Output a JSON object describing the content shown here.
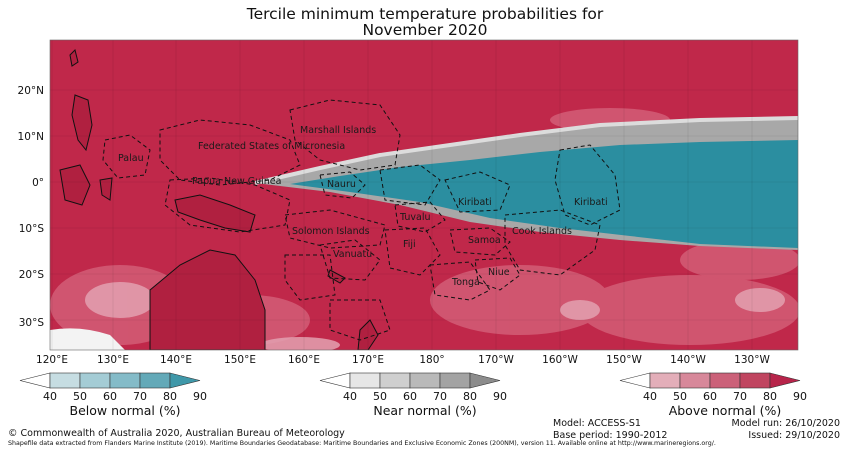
{
  "title": {
    "line1": "Tercile minimum temperature probabilities for",
    "line2": "November 2020"
  },
  "map": {
    "lat_labels": [
      "20°N",
      "10°N",
      "0°",
      "10°S",
      "20°S",
      "30°S"
    ],
    "lon_labels": [
      "120°E",
      "130°E",
      "140°E",
      "150°E",
      "160°E",
      "170°E",
      "180°",
      "170°W",
      "160°W",
      "150°W",
      "140°W",
      "130°W"
    ],
    "regions": [
      "Marshall Islands",
      "Federated States of Micronesia",
      "Palau",
      "Papua New Guinea",
      "Nauru",
      "Kiribati",
      "Kiribati",
      "Tuvalu",
      "Solomon Islands",
      "Cook Islands",
      "Samoa",
      "Fiji",
      "Vanuatu",
      "Niue",
      "Tonga"
    ],
    "colors": {
      "above": "#c0284a",
      "near": "#a8a8a8",
      "below": "#2b8ea0",
      "land": "#c0284a"
    }
  },
  "legends": [
    {
      "label": "Below normal (%)",
      "ticks": [
        "40",
        "50",
        "60",
        "70",
        "80",
        "90"
      ],
      "colors": [
        "#ffffff",
        "#c6dde2",
        "#a4ccd5",
        "#84bbc8",
        "#63a9b8",
        "#3f98a9"
      ]
    },
    {
      "label": "Near normal (%)",
      "ticks": [
        "40",
        "50",
        "60",
        "70",
        "80",
        "90"
      ],
      "colors": [
        "#ffffff",
        "#e6e6e6",
        "#cfcfcf",
        "#b9b9b9",
        "#a3a3a3",
        "#8c8c8c"
      ]
    },
    {
      "label": "Above normal (%)",
      "ticks": [
        "40",
        "50",
        "60",
        "70",
        "80",
        "90"
      ],
      "colors": [
        "#ffffff",
        "#e3aeb9",
        "#d7889a",
        "#cb6179",
        "#c04560",
        "#b7244a"
      ]
    }
  ],
  "footer": {
    "copyright": "© Commonwealth of Australia 2020, Australian Bureau of Meteorology",
    "model": "Model: ACCESS-S1",
    "base_period": "Base period: 1990-2012",
    "model_run": "Model run: 26/10/2020",
    "issued": "Issued: 29/10/2020",
    "shapefile": "Shapefile data extracted from Flanders Marine Institute (2019). Maritime Boundaries Geodatabase: Maritime Boundaries and Exclusive Economic Zones (200NM), version 11. Available online at http://www.marineregions.org/."
  }
}
